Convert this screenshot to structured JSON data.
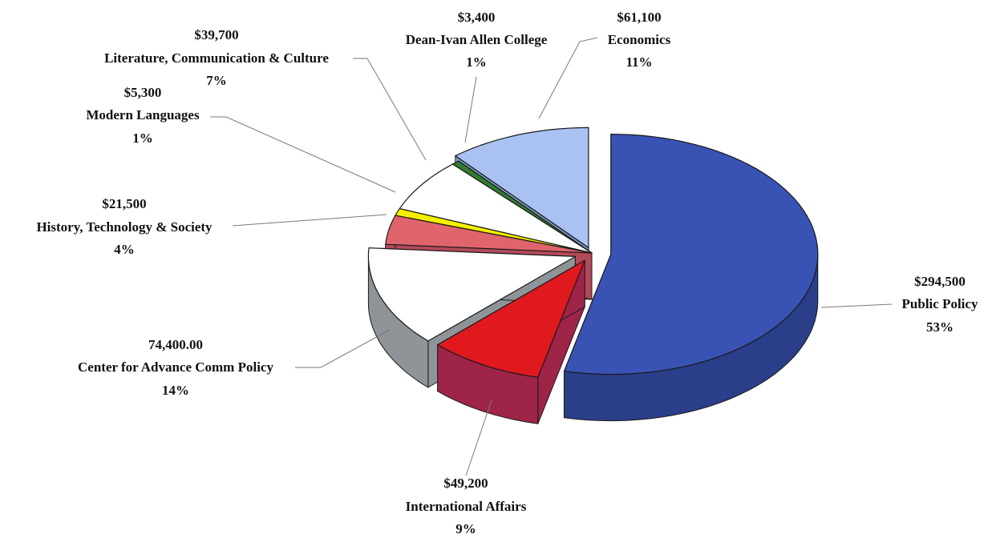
{
  "chart_data": {
    "type": "pie",
    "title": "",
    "style": "3d-exploded",
    "slices": [
      {
        "name": "Public Policy",
        "amount_label": "$294,500",
        "value": 294500,
        "percent_label": "53%",
        "color": "#3853b4",
        "side_color": "#2a3e8a"
      },
      {
        "name": "International Affairs",
        "amount_label": "$49,200",
        "value": 49200,
        "percent_label": "9%",
        "color": "#e0191e",
        "side_color": "#9e2448"
      },
      {
        "name": "Center for Advance Comm Policy",
        "amount_label": "74,400.00",
        "value": 74400,
        "percent_label": "14%",
        "color": "#ffffff",
        "side_color": "#8e9497"
      },
      {
        "name": "History, Technology & Society",
        "amount_label": "$21,500",
        "value": 21500,
        "percent_label": "4%",
        "color": "#e0646c",
        "side_color": "#b34a5a"
      },
      {
        "name": "Modern Languages",
        "amount_label": "$5,300",
        "value": 5300,
        "percent_label": "1%",
        "color": "#f5f000",
        "side_color": "#c4be00"
      },
      {
        "name": "Literature, Communication & Culture",
        "amount_label": "$39,700",
        "value": 39700,
        "percent_label": "7%",
        "color": "#ffffff",
        "side_color": "#cfcfcf"
      },
      {
        "name": "Dean-Ivan Allen College",
        "amount_label": "$3,400",
        "value": 3400,
        "percent_label": "1%",
        "color": "#2f7d2f",
        "side_color": "#1e5c1e"
      },
      {
        "name": "Economics",
        "amount_label": "$61,100",
        "value": 61100,
        "percent_label": "11%",
        "color": "#a9c2f2",
        "side_color": "#7f98c8"
      }
    ]
  }
}
